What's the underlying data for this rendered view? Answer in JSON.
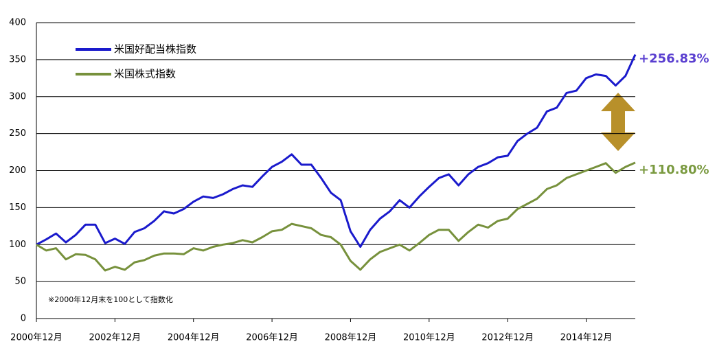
{
  "chart_data": {
    "type": "line",
    "x": [
      "2000-12",
      "2001-03",
      "2001-06",
      "2001-09",
      "2001-12",
      "2002-03",
      "2002-06",
      "2002-09",
      "2002-12",
      "2003-03",
      "2003-06",
      "2003-09",
      "2003-12",
      "2004-03",
      "2004-06",
      "2004-09",
      "2004-12",
      "2005-03",
      "2005-06",
      "2005-09",
      "2005-12",
      "2006-03",
      "2006-06",
      "2006-09",
      "2006-12",
      "2007-03",
      "2007-06",
      "2007-09",
      "2007-12",
      "2008-03",
      "2008-06",
      "2008-09",
      "2008-12",
      "2009-03",
      "2009-06",
      "2009-09",
      "2009-12",
      "2010-03",
      "2010-06",
      "2010-09",
      "2010-12",
      "2011-03",
      "2011-06",
      "2011-09",
      "2011-12",
      "2012-03",
      "2012-06",
      "2012-09",
      "2012-12",
      "2013-03",
      "2013-06",
      "2013-09",
      "2013-12",
      "2014-03",
      "2014-06",
      "2014-09",
      "2014-12",
      "2015-03",
      "2015-06",
      "2015-09",
      "2015-12",
      "2016-03"
    ],
    "series": [
      {
        "name": "米国好配当株指数",
        "color": "#1a1acc",
        "values": [
          100,
          107,
          115,
          103,
          113,
          127,
          127,
          102,
          108,
          101,
          117,
          122,
          132,
          145,
          142,
          148,
          158,
          165,
          163,
          168,
          175,
          180,
          178,
          192,
          205,
          212,
          222,
          208,
          208,
          190,
          170,
          160,
          118,
          97,
          120,
          135,
          145,
          160,
          150,
          165,
          178,
          190,
          195,
          180,
          195,
          205,
          210,
          218,
          220,
          240,
          250,
          258,
          280,
          285,
          305,
          308,
          325,
          330,
          328,
          315,
          328,
          356.83
        ]
      },
      {
        "name": "米国株式指数",
        "color": "#77913c",
        "values": [
          100,
          92,
          95,
          80,
          87,
          86,
          80,
          65,
          70,
          66,
          76,
          79,
          85,
          88,
          88,
          87,
          95,
          92,
          97,
          100,
          102,
          106,
          103,
          110,
          118,
          120,
          128,
          125,
          122,
          113,
          110,
          100,
          78,
          66,
          80,
          90,
          95,
          100,
          92,
          102,
          113,
          120,
          120,
          105,
          117,
          127,
          123,
          132,
          135,
          148,
          155,
          162,
          175,
          180,
          190,
          195,
          200,
          205,
          210,
          197,
          205,
          210.8
        ]
      }
    ],
    "xlim": [
      "2000-12",
      "2016-03"
    ],
    "xticks": [
      {
        "value": "2000-12",
        "label": "2000年12月"
      },
      {
        "value": "2002-12",
        "label": "2002年12月"
      },
      {
        "value": "2004-12",
        "label": "2004年12月"
      },
      {
        "value": "2006-12",
        "label": "2006年12月"
      },
      {
        "value": "2008-12",
        "label": "2008年12月"
      },
      {
        "value": "2010-12",
        "label": "2010年12月"
      },
      {
        "value": "2012-12",
        "label": "2012年12月"
      },
      {
        "value": "2014-12",
        "label": "2014年12月"
      }
    ],
    "ylim": [
      0,
      400
    ],
    "yticks": [
      0,
      50,
      100,
      150,
      200,
      250,
      300,
      350,
      400
    ],
    "grid": true,
    "annotations": [
      "+256.83%",
      "+110.80%"
    ],
    "note": "※2000年12月末を100として指数化"
  }
}
